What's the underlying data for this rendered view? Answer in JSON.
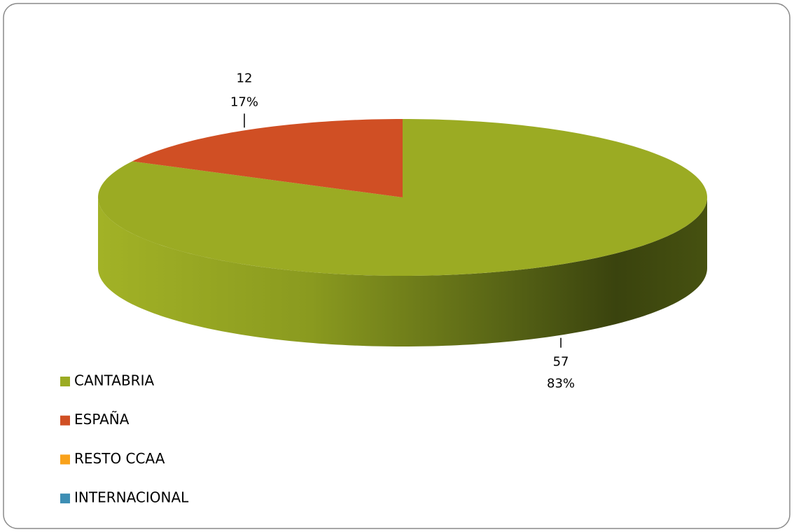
{
  "chart_data": {
    "type": "pie3d",
    "categories": [
      "CANTABRIA",
      "ESPAÑA",
      "RESTO CCAA",
      "INTERNACIONAL"
    ],
    "values": [
      57,
      12,
      0,
      0
    ],
    "percent_labels": [
      "83%",
      "17%"
    ],
    "colors": [
      "#9bab23",
      "#d04f24",
      "#f9a21b",
      "#3d8eb4"
    ],
    "legend": "bottom-left"
  }
}
